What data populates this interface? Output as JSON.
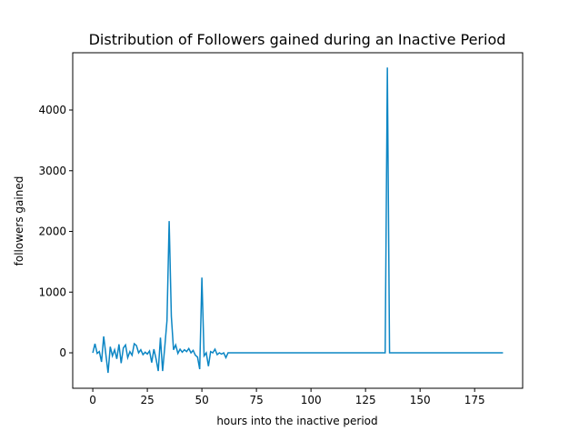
{
  "chart_data": {
    "type": "line",
    "title": "Distribution of Followers gained during an Inactive Period",
    "xlabel": "hours into the inactive period",
    "ylabel": "followers gained",
    "x": [
      0,
      1,
      2,
      3,
      4,
      5,
      6,
      7,
      8,
      9,
      10,
      11,
      12,
      13,
      14,
      15,
      16,
      17,
      18,
      19,
      20,
      21,
      22,
      23,
      24,
      25,
      26,
      27,
      28,
      29,
      30,
      31,
      32,
      33,
      34,
      35,
      36,
      37,
      38,
      39,
      40,
      41,
      42,
      43,
      44,
      45,
      46,
      47,
      48,
      49,
      50,
      51,
      52,
      53,
      54,
      55,
      56,
      57,
      58,
      59,
      60,
      61,
      62,
      63,
      134,
      135,
      136,
      188
    ],
    "series": [
      {
        "name": "followers",
        "color": "#0c86c4",
        "values": [
          0,
          150,
          -10,
          20,
          -150,
          270,
          -30,
          -330,
          100,
          -50,
          50,
          -100,
          140,
          -170,
          80,
          130,
          -80,
          20,
          -40,
          150,
          120,
          0,
          50,
          -30,
          10,
          -20,
          30,
          -160,
          60,
          -100,
          -300,
          250,
          -300,
          100,
          530,
          2170,
          600,
          50,
          130,
          -10,
          60,
          10,
          50,
          20,
          70,
          0,
          40,
          -40,
          -70,
          -270,
          1240,
          -50,
          0,
          -220,
          20,
          0,
          60,
          -30,
          0,
          -20,
          0,
          -80,
          0,
          0,
          0,
          4700,
          0,
          0
        ]
      }
    ],
    "xlim": [
      -9.2,
      197
    ],
    "ylim": [
      -584,
      4944
    ],
    "xticks": [
      0,
      25,
      50,
      75,
      100,
      125,
      150,
      175
    ],
    "yticks": [
      0,
      1000,
      2000,
      3000,
      4000
    ]
  }
}
